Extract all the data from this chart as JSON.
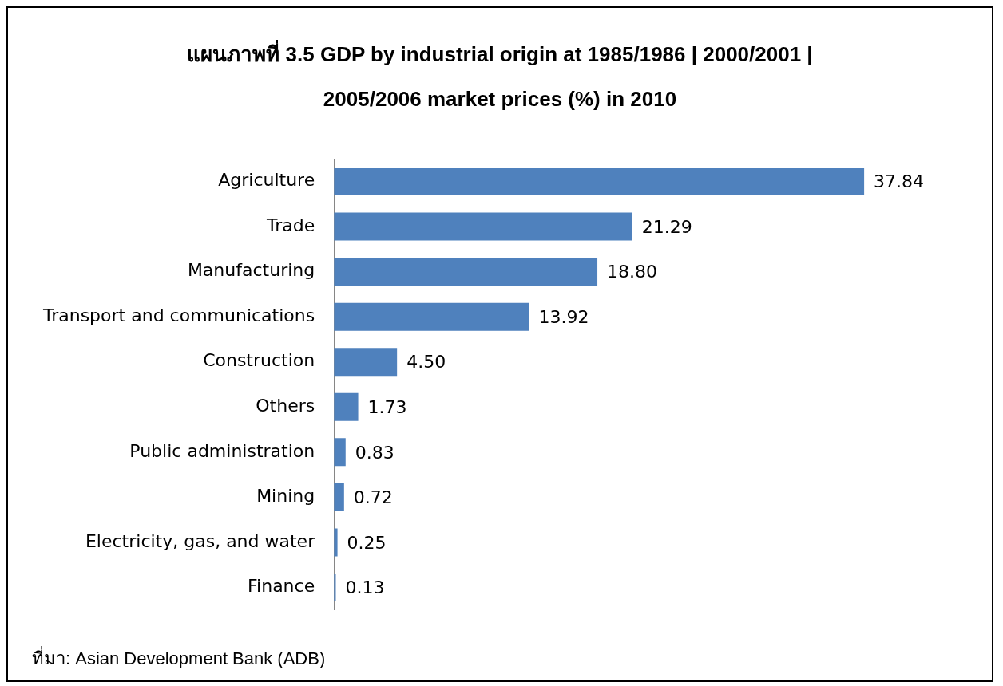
{
  "chart_data": {
    "type": "bar",
    "orientation": "horizontal",
    "title": "แผนภาพที่ 3.5 GDP by industrial origin at 1985/1986 | 2000/2001 | 2005/2006 market prices (%) in 2010",
    "categories": [
      "Agriculture",
      "Trade",
      "Manufacturing",
      "Transport and communications",
      "Construction",
      "Others",
      "Public administration",
      "Mining",
      "Electricity, gas, and water",
      "Finance"
    ],
    "values": [
      37.84,
      21.29,
      18.8,
      13.92,
      4.5,
      1.73,
      0.83,
      0.72,
      0.25,
      0.13
    ],
    "value_labels": [
      "37.84",
      "21.29",
      "18.80",
      "13.92",
      "4.50",
      "1.73",
      "0.83",
      "0.72",
      "0.25",
      "0.13"
    ],
    "color": "#4f81bd",
    "legend": false,
    "tick_labels": "y",
    "annotations": [
      "ที่มา: Asian Development Bank (ADB)"
    ]
  }
}
